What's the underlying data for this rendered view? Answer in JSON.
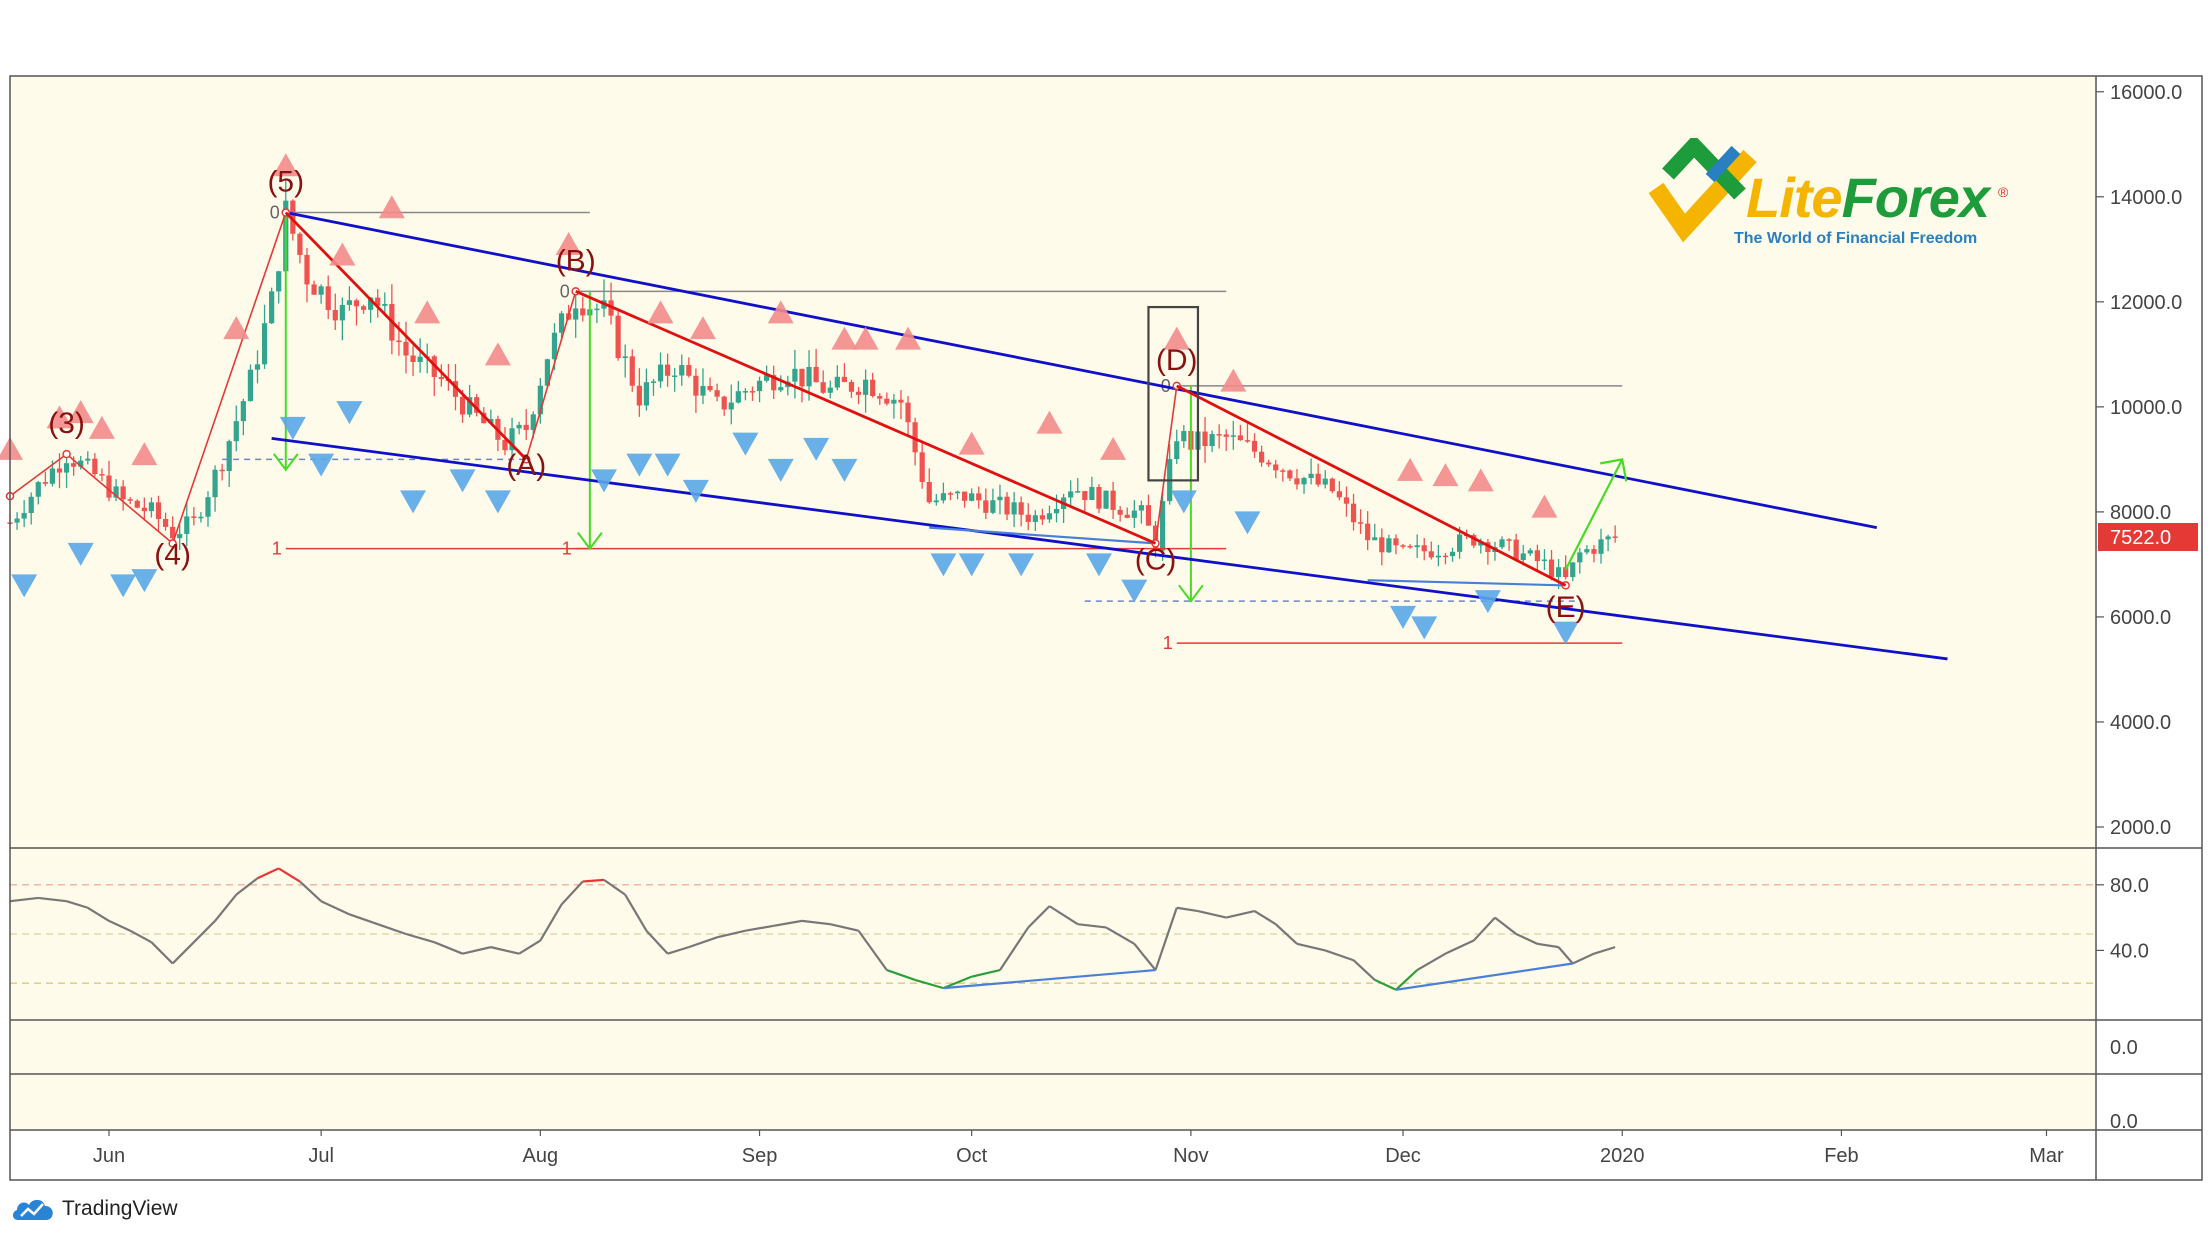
{
  "chart_data": {
    "type": "candlestick",
    "instrument_price_label": "7522.0",
    "price_axis": {
      "ticks": [
        "16000.0",
        "14000.0",
        "12000.0",
        "10000.0",
        "8000.0",
        "6000.0",
        "4000.0",
        "2000.0"
      ],
      "range": [
        1600,
        16300
      ],
      "current_price": 7522.0
    },
    "time_axis": {
      "labels": [
        {
          "label": "Jun",
          "day": 0
        },
        {
          "label": "Jul",
          "day": 30
        },
        {
          "label": "Aug",
          "day": 61
        },
        {
          "label": "Sep",
          "day": 92
        },
        {
          "label": "Oct",
          "day": 122
        },
        {
          "label": "Nov",
          "day": 153
        },
        {
          "label": "Dec",
          "day": 183
        },
        {
          "label": "2020",
          "day": 214
        },
        {
          "label": "Feb",
          "day": 245
        },
        {
          "label": "Mar",
          "day": 274
        }
      ],
      "day_range": [
        -14,
        281
      ]
    },
    "price_path": [
      {
        "day": -14,
        "price": 7800
      },
      {
        "day": -10,
        "price": 8500
      },
      {
        "day": -6,
        "price": 9100
      },
      {
        "day": -2,
        "price": 8700
      },
      {
        "day": 2,
        "price": 8200
      },
      {
        "day": 6,
        "price": 8000
      },
      {
        "day": 9,
        "price": 7600
      },
      {
        "day": 12,
        "price": 7800
      },
      {
        "day": 16,
        "price": 9000
      },
      {
        "day": 20,
        "price": 10500
      },
      {
        "day": 23,
        "price": 12000
      },
      {
        "day": 25,
        "price": 13700
      },
      {
        "day": 28,
        "price": 12500
      },
      {
        "day": 33,
        "price": 11800
      },
      {
        "day": 37,
        "price": 12200
      },
      {
        "day": 42,
        "price": 11000
      },
      {
        "day": 47,
        "price": 10500
      },
      {
        "day": 52,
        "price": 9800
      },
      {
        "day": 56,
        "price": 9300
      },
      {
        "day": 59,
        "price": 9600
      },
      {
        "day": 62,
        "price": 11000
      },
      {
        "day": 66,
        "price": 12100
      },
      {
        "day": 70,
        "price": 11800
      },
      {
        "day": 75,
        "price": 10200
      },
      {
        "day": 80,
        "price": 10800
      },
      {
        "day": 86,
        "price": 10000
      },
      {
        "day": 91,
        "price": 10400
      },
      {
        "day": 96,
        "price": 10700
      },
      {
        "day": 102,
        "price": 10300
      },
      {
        "day": 107,
        "price": 10500
      },
      {
        "day": 112,
        "price": 10100
      },
      {
        "day": 116,
        "price": 8200
      },
      {
        "day": 121,
        "price": 8300
      },
      {
        "day": 126,
        "price": 8100
      },
      {
        "day": 131,
        "price": 7900
      },
      {
        "day": 136,
        "price": 8500
      },
      {
        "day": 141,
        "price": 8200
      },
      {
        "day": 146,
        "price": 7950
      },
      {
        "day": 148,
        "price": 7400
      },
      {
        "day": 151,
        "price": 9500
      },
      {
        "day": 153,
        "price": 9300
      },
      {
        "day": 158,
        "price": 9400
      },
      {
        "day": 163,
        "price": 9100
      },
      {
        "day": 168,
        "price": 8700
      },
      {
        "day": 173,
        "price": 8400
      },
      {
        "day": 178,
        "price": 7500
      },
      {
        "day": 183,
        "price": 7200
      },
      {
        "day": 188,
        "price": 7300
      },
      {
        "day": 193,
        "price": 7500
      },
      {
        "day": 198,
        "price": 7300
      },
      {
        "day": 203,
        "price": 7000
      },
      {
        "day": 206,
        "price": 6700
      },
      {
        "day": 208,
        "price": 7200
      },
      {
        "day": 211,
        "price": 7400
      },
      {
        "day": 213,
        "price": 7522
      }
    ],
    "wave_labels": [
      {
        "text": "(3)",
        "day": -6,
        "price": 9500
      },
      {
        "text": "(4)",
        "day": 9,
        "price": 7000
      },
      {
        "text": "(5)",
        "day": 25,
        "price": 14100
      },
      {
        "text": "(A)",
        "day": 59,
        "price": 8700
      },
      {
        "text": "(B)",
        "day": 66,
        "price": 12600
      },
      {
        "text": "(C)",
        "day": 148,
        "price": 6900
      },
      {
        "text": "(D)",
        "day": 151,
        "price": 10700
      },
      {
        "text": "(E)",
        "day": 206,
        "price": 6000
      }
    ],
    "zigzag": [
      {
        "day": -14,
        "price": 8300
      },
      {
        "day": -6,
        "price": 9100
      },
      {
        "day": 9,
        "price": 7400
      },
      {
        "day": 25,
        "price": 13700
      },
      {
        "day": 59,
        "price": 9000
      },
      {
        "day": 66,
        "price": 12200
      },
      {
        "day": 148,
        "price": 7400
      },
      {
        "day": 151,
        "price": 10400
      },
      {
        "day": 206,
        "price": 6600
      }
    ],
    "red_trendlines": [
      [
        {
          "day": 25,
          "price": 13700
        },
        {
          "day": 59,
          "price": 9000
        }
      ],
      [
        {
          "day": 66,
          "price": 12200
        },
        {
          "day": 148,
          "price": 7400
        }
      ],
      [
        {
          "day": 151,
          "price": 10400
        },
        {
          "day": 206,
          "price": 6600
        }
      ]
    ],
    "channel_lines": [
      [
        {
          "day": 25,
          "price": 13700
        },
        {
          "day": 250,
          "price": 7700
        }
      ],
      [
        {
          "day": 23,
          "price": 9400
        },
        {
          "day": 260,
          "price": 5200
        }
      ]
    ],
    "blue_support_lines": [
      [
        {
          "day": 116,
          "price": 7700
        },
        {
          "day": 148,
          "price": 7400
        }
      ],
      [
        {
          "day": 178,
          "price": 6700
        },
        {
          "day": 206,
          "price": 6600
        }
      ]
    ],
    "fib_projections": [
      {
        "zero": {
          "day": 25,
          "price": 13700
        },
        "one_price": 7300,
        "end_day": 68,
        "arrow_day": 25,
        "arrow_to": 8800
      },
      {
        "zero": {
          "day": 66,
          "price": 12200
        },
        "one_price": 7300,
        "end_day": 158,
        "arrow_day": 68,
        "arrow_to": 7300
      },
      {
        "zero": {
          "day": 151,
          "price": 10400
        },
        "one_price": 5500,
        "end_day": 214,
        "arrow_day": 153,
        "arrow_to": 6300
      }
    ],
    "fib_zero_label": "0",
    "fib_one_label": "1",
    "dashed_levels": [
      {
        "price": 9000,
        "from_day": 16,
        "to_day": 59
      },
      {
        "price": 6300,
        "from_day": 138,
        "to_day": 208
      }
    ],
    "forecast_arrow": [
      {
        "day": 206,
        "price": 6900
      },
      {
        "day": 214,
        "price": 9000
      }
    ],
    "highlight_box": {
      "from_day": 147,
      "to_day": 154,
      "price_low": 8600,
      "price_high": 11900
    },
    "sell_signals": [
      {
        "day": -14,
        "price": 9200
      },
      {
        "day": -7,
        "price": 9800
      },
      {
        "day": -4,
        "price": 9900
      },
      {
        "day": -1,
        "price": 9600
      },
      {
        "day": 5,
        "price": 9100
      },
      {
        "day": 18,
        "price": 11500
      },
      {
        "day": 25,
        "price": 14600
      },
      {
        "day": 33,
        "price": 12900
      },
      {
        "day": 40,
        "price": 13800
      },
      {
        "day": 45,
        "price": 11800
      },
      {
        "day": 55,
        "price": 11000
      },
      {
        "day": 65,
        "price": 13100
      },
      {
        "day": 78,
        "price": 11800
      },
      {
        "day": 84,
        "price": 11500
      },
      {
        "day": 95,
        "price": 11800
      },
      {
        "day": 104,
        "price": 11300
      },
      {
        "day": 107,
        "price": 11300
      },
      {
        "day": 113,
        "price": 11300
      },
      {
        "day": 122,
        "price": 9300
      },
      {
        "day": 133,
        "price": 9700
      },
      {
        "day": 142,
        "price": 9200
      },
      {
        "day": 151,
        "price": 11300
      },
      {
        "day": 159,
        "price": 10500
      },
      {
        "day": 184,
        "price": 8800
      },
      {
        "day": 189,
        "price": 8700
      },
      {
        "day": 194,
        "price": 8600
      },
      {
        "day": 203,
        "price": 8100
      }
    ],
    "buy_signals": [
      {
        "day": -12,
        "price": 6600
      },
      {
        "day": -4,
        "price": 7200
      },
      {
        "day": 2,
        "price": 6600
      },
      {
        "day": 5,
        "price": 6700
      },
      {
        "day": 26,
        "price": 9600
      },
      {
        "day": 30,
        "price": 8900
      },
      {
        "day": 34,
        "price": 9900
      },
      {
        "day": 43,
        "price": 8200
      },
      {
        "day": 50,
        "price": 8600
      },
      {
        "day": 55,
        "price": 8200
      },
      {
        "day": 70,
        "price": 8600
      },
      {
        "day": 75,
        "price": 8900
      },
      {
        "day": 79,
        "price": 8900
      },
      {
        "day": 83,
        "price": 8400
      },
      {
        "day": 90,
        "price": 9300
      },
      {
        "day": 95,
        "price": 8800
      },
      {
        "day": 100,
        "price": 9200
      },
      {
        "day": 104,
        "price": 8800
      },
      {
        "day": 118,
        "price": 7000
      },
      {
        "day": 122,
        "price": 7000
      },
      {
        "day": 129,
        "price": 7000
      },
      {
        "day": 140,
        "price": 7000
      },
      {
        "day": 145,
        "price": 6500
      },
      {
        "day": 152,
        "price": 8200
      },
      {
        "day": 161,
        "price": 7800
      },
      {
        "day": 183,
        "price": 6000
      },
      {
        "day": 186,
        "price": 5800
      },
      {
        "day": 195,
        "price": 6300
      },
      {
        "day": 206,
        "price": 5700
      }
    ],
    "oscillator": {
      "ticks": [
        "80.0",
        "40.0"
      ],
      "range": [
        0,
        100
      ],
      "overbought": 80,
      "middle": 50,
      "oversold": 20,
      "path": [
        {
          "day": -14,
          "value": 70
        },
        {
          "day": -10,
          "value": 72
        },
        {
          "day": -6,
          "value": 70
        },
        {
          "day": -3,
          "value": 66
        },
        {
          "day": 0,
          "value": 58
        },
        {
          "day": 3,
          "value": 52
        },
        {
          "day": 6,
          "value": 45
        },
        {
          "day": 9,
          "value": 32
        },
        {
          "day": 12,
          "value": 45
        },
        {
          "day": 15,
          "value": 58
        },
        {
          "day": 18,
          "value": 74
        },
        {
          "day": 21,
          "value": 84
        },
        {
          "day": 24,
          "value": 90
        },
        {
          "day": 27,
          "value": 82
        },
        {
          "day": 30,
          "value": 70
        },
        {
          "day": 34,
          "value": 62
        },
        {
          "day": 38,
          "value": 56
        },
        {
          "day": 42,
          "value": 50
        },
        {
          "day": 46,
          "value": 45
        },
        {
          "day": 50,
          "value": 38
        },
        {
          "day": 54,
          "value": 42
        },
        {
          "day": 58,
          "value": 38
        },
        {
          "day": 61,
          "value": 46
        },
        {
          "day": 64,
          "value": 68
        },
        {
          "day": 67,
          "value": 82
        },
        {
          "day": 70,
          "value": 83
        },
        {
          "day": 73,
          "value": 74
        },
        {
          "day": 76,
          "value": 52
        },
        {
          "day": 79,
          "value": 38
        },
        {
          "day": 82,
          "value": 42
        },
        {
          "day": 86,
          "value": 48
        },
        {
          "day": 90,
          "value": 52
        },
        {
          "day": 94,
          "value": 55
        },
        {
          "day": 98,
          "value": 58
        },
        {
          "day": 102,
          "value": 56
        },
        {
          "day": 106,
          "value": 52
        },
        {
          "day": 110,
          "value": 28
        },
        {
          "day": 114,
          "value": 22
        },
        {
          "day": 118,
          "value": 17
        },
        {
          "day": 122,
          "value": 24
        },
        {
          "day": 126,
          "value": 28
        },
        {
          "day": 130,
          "value": 54
        },
        {
          "day": 133,
          "value": 67
        },
        {
          "day": 137,
          "value": 56
        },
        {
          "day": 141,
          "value": 54
        },
        {
          "day": 145,
          "value": 44
        },
        {
          "day": 148,
          "value": 28
        },
        {
          "day": 151,
          "value": 66
        },
        {
          "day": 154,
          "value": 64
        },
        {
          "day": 158,
          "value": 60
        },
        {
          "day": 162,
          "value": 64
        },
        {
          "day": 165,
          "value": 56
        },
        {
          "day": 168,
          "value": 44
        },
        {
          "day": 172,
          "value": 40
        },
        {
          "day": 176,
          "value": 34
        },
        {
          "day": 179,
          "value": 22
        },
        {
          "day": 182,
          "value": 16
        },
        {
          "day": 185,
          "value": 28
        },
        {
          "day": 189,
          "value": 38
        },
        {
          "day": 193,
          "value": 46
        },
        {
          "day": 196,
          "value": 60
        },
        {
          "day": 199,
          "value": 50
        },
        {
          "day": 202,
          "value": 44
        },
        {
          "day": 205,
          "value": 42
        },
        {
          "day": 207,
          "value": 32
        },
        {
          "day": 210,
          "value": 38
        },
        {
          "day": 213,
          "value": 42
        }
      ],
      "divergence_lines": [
        [
          {
            "day": 118,
            "value": 17
          },
          {
            "day": 148,
            "value": 28
          }
        ],
        [
          {
            "day": 182,
            "value": 16
          },
          {
            "day": 207,
            "value": 32
          }
        ]
      ]
    },
    "lower_panel_ticks": [
      "0.0",
      "0.0"
    ],
    "grid": false,
    "colors": {
      "background": "#fffbea",
      "bull_candle": "#33a58f",
      "bear_candle": "#ef5350",
      "zigzag": "#e53935",
      "trendline_red": "#e01010",
      "channel": "#1010c8",
      "support": "#4a7fd8",
      "fib_line": "#888888",
      "fib_one": "#e53935",
      "arrow": "#44dd22",
      "sell_signal": "#f28b8b",
      "buy_signal": "#5aa7e8",
      "oscillator": "#777777",
      "osc_overbought": "#e53935",
      "osc_oversold": "#2e9f36",
      "price_tag": "#e53935"
    }
  },
  "logo": {
    "name_part1": "Lite",
    "name_part2": "Forex",
    "registered": "®",
    "tagline": "The World of Financial Freedom"
  },
  "branding": {
    "name": "TradingView",
    "icon": "tradingview-cloud-icon"
  }
}
